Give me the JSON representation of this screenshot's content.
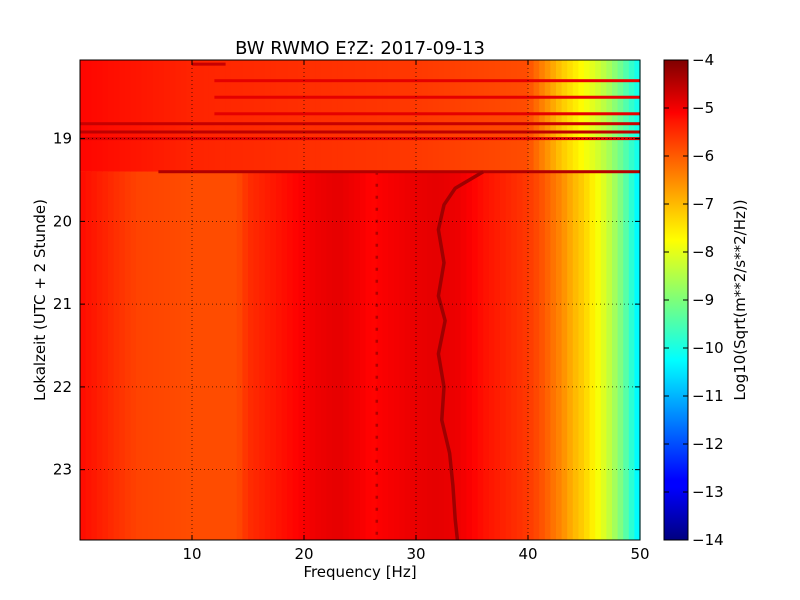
{
  "chart_data": {
    "type": "heatmap",
    "title": "BW RWMO E?Z: 2017-09-13",
    "xlabel": "Frequency [Hz]",
    "ylabel": "Lokalzeit (UTC + 2 Stunde)",
    "colorbar_label": "Log10(Sqrt(m**2/s**2/Hz))",
    "xlim": [
      0,
      50
    ],
    "ylim": [
      18.05,
      23.85
    ],
    "y_inverted": true,
    "x_ticks": [
      10,
      20,
      30,
      40,
      50
    ],
    "x_tick_labels": [
      "10",
      "20",
      "30",
      "40",
      "50"
    ],
    "y_ticks": [
      19,
      20,
      21,
      22,
      23
    ],
    "y_tick_labels": [
      "19",
      "20",
      "21",
      "22",
      "23"
    ],
    "color_range": [
      -14,
      -4
    ],
    "colorbar_ticks": [
      -4,
      -5,
      -6,
      -7,
      -8,
      -9,
      -10,
      -11,
      -12,
      -13,
      -14
    ],
    "colorbar_tick_labels": [
      "−4",
      "−5",
      "−6",
      "−7",
      "−8",
      "−9",
      "−10",
      "−11",
      "−12",
      "−13",
      "−14"
    ],
    "colormap": "jet",
    "grid": true,
    "spectrum_profile": {
      "freq_hz": [
        0,
        5,
        10,
        14,
        15,
        17,
        19,
        21,
        23,
        25,
        26,
        27,
        30,
        32,
        34,
        36,
        38,
        40,
        41,
        42,
        43,
        44,
        45,
        46,
        47,
        48,
        49,
        50
      ],
      "log_amplitude": [
        -5.35,
        -5.9,
        -6.0,
        -6.0,
        -5.7,
        -5.5,
        -5.3,
        -5.1,
        -5.0,
        -5.15,
        -5.3,
        -5.2,
        -5.05,
        -5.0,
        -5.1,
        -5.4,
        -5.6,
        -5.8,
        -6.0,
        -6.3,
        -6.6,
        -7.0,
        -7.3,
        -7.7,
        -8.2,
        -8.8,
        -9.6,
        -10.5
      ]
    },
    "early_band": {
      "time_range": [
        18.05,
        19.4
      ],
      "freq_hz": [
        0,
        10,
        20,
        30,
        40,
        41,
        42,
        43,
        44,
        45,
        46,
        47,
        48,
        49,
        50
      ],
      "log_amplitude": [
        -5.3,
        -5.6,
        -5.7,
        -5.8,
        -6.0,
        -6.4,
        -6.8,
        -7.2,
        -7.5,
        -7.8,
        -8.1,
        -8.5,
        -9.0,
        -9.6,
        -10.2
      ]
    },
    "horizontal_bands": [
      {
        "time": 18.1,
        "freq_range": [
          10,
          13
        ],
        "log_amplitude": -4.7
      },
      {
        "time": 18.3,
        "freq_range": [
          12,
          50
        ],
        "log_amplitude": -5.0
      },
      {
        "time": 18.5,
        "freq_range": [
          12,
          50
        ],
        "log_amplitude": -5.0
      },
      {
        "time": 18.7,
        "freq_range": [
          12,
          50
        ],
        "log_amplitude": -5.0
      },
      {
        "time": 18.82,
        "freq_range": [
          0,
          50
        ],
        "log_amplitude": -4.7
      },
      {
        "time": 18.92,
        "freq_range": [
          0,
          50
        ],
        "log_amplitude": -4.6
      },
      {
        "time": 19.0,
        "freq_range": [
          0,
          50
        ],
        "log_amplitude": -4.9
      },
      {
        "time": 19.4,
        "freq_range": [
          7,
          50
        ],
        "log_amplitude": -4.5
      }
    ],
    "tremor_line": {
      "log_amplitude": -4.3,
      "points": [
        {
          "t": 19.4,
          "f": 36.0
        },
        {
          "t": 19.6,
          "f": 33.5
        },
        {
          "t": 19.8,
          "f": 32.5
        },
        {
          "t": 20.1,
          "f": 32.0
        },
        {
          "t": 20.5,
          "f": 32.5
        },
        {
          "t": 20.9,
          "f": 32.0
        },
        {
          "t": 21.2,
          "f": 32.6
        },
        {
          "t": 21.6,
          "f": 32.0
        },
        {
          "t": 22.0,
          "f": 32.5
        },
        {
          "t": 22.4,
          "f": 32.3
        },
        {
          "t": 22.8,
          "f": 33.0
        },
        {
          "t": 23.2,
          "f": 33.3
        },
        {
          "t": 23.6,
          "f": 33.5
        },
        {
          "t": 23.85,
          "f": 33.7
        }
      ]
    },
    "spike_line": {
      "freq_hz": 26.5,
      "time_range": [
        19.4,
        23.85
      ],
      "log_amplitude": -4.5
    }
  }
}
